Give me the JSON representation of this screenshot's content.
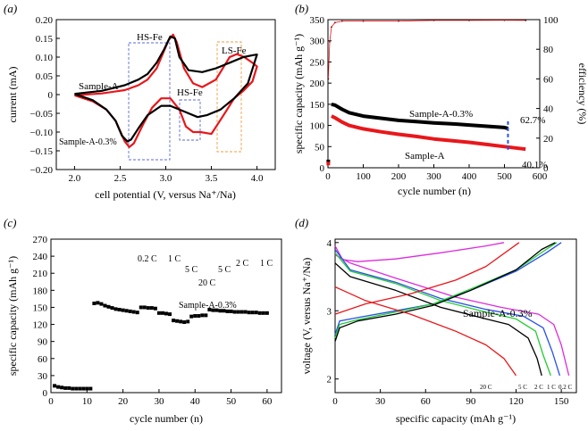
{
  "colors": {
    "black": "#000000",
    "red": "#e8171b",
    "blue": "#3a4fd6",
    "orange": "#f39b3c",
    "green": "#22cc33",
    "magenta": "#dd2bdd",
    "blue_curve": "#2850e8"
  },
  "chart_data": [
    {
      "panel": "(a)",
      "type": "line",
      "xlabel": "cell potential (V, versus Na⁺/Na)",
      "ylabel": "current (mA)",
      "xlim": [
        1.8,
        4.2
      ],
      "ylim": [
        -0.2,
        0.2
      ],
      "xticks": [
        "2.0",
        "2.5",
        "3.0",
        "3.5",
        "4.0"
      ],
      "yticks": [
        "0.20",
        "0.15",
        "0.10",
        "0.05",
        "0",
        "−0.05",
        "−0.10",
        "−0.15",
        "−0.20"
      ],
      "annotations": {
        "hs_fe_top": "HS-Fe",
        "hs_fe_mid": "HS-Fe",
        "ls_fe": "LS-Fe",
        "sample_a": "Sample-A",
        "sample_a03": "Sample-A-0.3%"
      },
      "series": [
        {
          "name": "Sample-A",
          "color": "red",
          "x": [
            2.0,
            2.3,
            2.55,
            2.7,
            2.8,
            2.9,
            2.97,
            3.03,
            3.08,
            3.12,
            3.2,
            3.3,
            3.4,
            3.55,
            3.7,
            3.78,
            3.86,
            3.95,
            4.0,
            3.95,
            3.85,
            3.75,
            3.62,
            3.5,
            3.38,
            3.3,
            3.22,
            3.15,
            3.05,
            2.95,
            2.85,
            2.75,
            2.65,
            2.6,
            2.55,
            2.45,
            2.35,
            2.2,
            2.0
          ],
          "y": [
            -0.002,
            0.003,
            0.012,
            0.025,
            0.04,
            0.07,
            0.11,
            0.145,
            0.16,
            0.14,
            0.07,
            0.03,
            0.02,
            0.04,
            0.1,
            0.108,
            0.1,
            0.085,
            0.075,
            0.035,
            0.01,
            -0.01,
            -0.06,
            -0.105,
            -0.1,
            -0.1,
            -0.085,
            -0.04,
            -0.01,
            -0.01,
            -0.035,
            -0.08,
            -0.13,
            -0.14,
            -0.125,
            -0.07,
            -0.04,
            -0.018,
            -0.002
          ]
        },
        {
          "name": "Sample-A-0.3%",
          "color": "black",
          "x": [
            2.0,
            2.3,
            2.55,
            2.7,
            2.8,
            2.9,
            2.98,
            3.05,
            3.1,
            3.15,
            3.25,
            3.4,
            3.55,
            3.7,
            3.85,
            3.95,
            4.0,
            3.9,
            3.75,
            3.6,
            3.45,
            3.35,
            3.2,
            3.05,
            2.95,
            2.8,
            2.7,
            2.62,
            2.58,
            2.52,
            2.45,
            2.35,
            2.2,
            2.0
          ],
          "y": [
            0.002,
            0.01,
            0.025,
            0.04,
            0.055,
            0.085,
            0.12,
            0.155,
            0.15,
            0.1,
            0.065,
            0.06,
            0.07,
            0.085,
            0.1,
            0.105,
            0.107,
            0.03,
            -0.01,
            -0.04,
            -0.055,
            -0.06,
            -0.045,
            -0.03,
            -0.03,
            -0.055,
            -0.09,
            -0.12,
            -0.125,
            -0.11,
            -0.07,
            -0.04,
            -0.015,
            0.002
          ]
        }
      ]
    },
    {
      "panel": "(b)",
      "type": "scatter",
      "xlabel": "cycle number (n)",
      "ylabel": "specific capacity (mAh g⁻¹)",
      "y2label": "efficiency (%)",
      "xlim": [
        0,
        600
      ],
      "ylim": [
        0,
        350
      ],
      "y2lim": [
        0,
        100
      ],
      "xticks": [
        "0",
        "100",
        "200",
        "300",
        "400",
        "500",
        "600"
      ],
      "yticks": [
        "0",
        "50",
        "100",
        "150",
        "200",
        "250",
        "300",
        "350"
      ],
      "y2ticks": [
        "0",
        "20",
        "40",
        "60",
        "80",
        "100"
      ],
      "annotations": {
        "label_a03": "Sample-A-0.3%",
        "label_a": "Sample-A",
        "retention_a03": "62.7%",
        "retention_a": "40.1%"
      },
      "series": [
        {
          "name": "Sample-A-0.3%",
          "color": "black",
          "x": [
            1,
            10,
            20,
            40,
            60,
            100,
            150,
            200,
            250,
            300,
            350,
            400,
            450,
            500,
            510
          ],
          "y": [
            15,
            150,
            148,
            138,
            130,
            122,
            117,
            112,
            109,
            106,
            104,
            101,
            98,
            95,
            93
          ]
        },
        {
          "name": "Sample-A",
          "color": "red",
          "x": [
            1,
            10,
            20,
            40,
            60,
            100,
            150,
            200,
            250,
            300,
            350,
            400,
            450,
            500,
            550,
            560
          ],
          "y": [
            10,
            122,
            118,
            108,
            100,
            92,
            85,
            79,
            74,
            68,
            64,
            60,
            55,
            50,
            45,
            44
          ]
        },
        {
          "name": "Efficiency",
          "axis": "right",
          "x": [
            1,
            5,
            10,
            20,
            40,
            100,
            200,
            300,
            400,
            500,
            560
          ],
          "y": [
            60,
            85,
            95,
            98,
            99,
            99,
            99,
            99.5,
            99.5,
            99.6,
            99.5
          ]
        }
      ]
    },
    {
      "panel": "(c)",
      "type": "scatter",
      "xlabel": "cycle number (n)",
      "ylabel": "specific capacity (mAh g⁻¹)",
      "xlim": [
        0,
        64
      ],
      "ylim": [
        0,
        270
      ],
      "xticks": [
        "0",
        "10",
        "20",
        "30",
        "40",
        "50",
        "60"
      ],
      "yticks": [
        "0",
        "30",
        "60",
        "90",
        "120",
        "150",
        "180",
        "210",
        "240",
        "270"
      ],
      "annotations": {
        "rate_02c_a": "0.2 C",
        "rate_1c_a": "1 C",
        "rate_5c_a": "5 C",
        "rate_20c": "20 C",
        "rate_5c_b": "5 C",
        "rate_2c": "2 C",
        "rate_1c_b": "1 C",
        "sample": "Sample-A-0.3%"
      },
      "series": [
        {
          "name": "Sample-A-0.3%",
          "color": "black",
          "x": [
            1,
            2,
            3,
            4,
            5,
            6,
            7,
            8,
            9,
            10,
            11,
            12,
            13,
            14,
            15,
            16,
            17,
            18,
            19,
            20,
            21,
            22,
            23,
            24,
            25,
            26,
            27,
            28,
            29,
            30,
            31,
            32,
            33,
            34,
            35,
            36,
            37,
            38,
            39,
            40,
            41,
            42,
            43,
            44,
            45,
            46,
            47,
            48,
            49,
            50,
            51,
            52,
            53,
            54,
            55,
            56,
            57,
            58,
            59,
            60
          ],
          "y": [
            12,
            10,
            9,
            8,
            8,
            7,
            7,
            7,
            7,
            7,
            7,
            157,
            158,
            156,
            153,
            151,
            149,
            147,
            146,
            145,
            144,
            143,
            142,
            141,
            150,
            150,
            149,
            149,
            148,
            140,
            140,
            139,
            138,
            127,
            126,
            125,
            124,
            125,
            134,
            135,
            135,
            136,
            136,
            146,
            145,
            145,
            144,
            144,
            143,
            143,
            142,
            142,
            142,
            142,
            141,
            141,
            141,
            140,
            140,
            140
          ]
        }
      ]
    },
    {
      "panel": "(d)",
      "type": "line",
      "xlabel": "specific capacity (mAh g⁻¹)",
      "ylabel": "voltage (V, versus Na⁺/Na)",
      "xlim": [
        0,
        160
      ],
      "ylim": [
        1.8,
        4.05
      ],
      "xticks": [
        "0",
        "30",
        "60",
        "90",
        "120",
        "150"
      ],
      "yticks": [
        "2",
        "3",
        "4"
      ],
      "annotations": {
        "sample": "Sample-A-0.3%",
        "rate_20c": "20 C",
        "rate_5c": "5 C",
        "rate_2c": "2 C",
        "rate_1c": "1 C",
        "rate_02c": "0.2 C"
      },
      "series": [
        {
          "name": "0.2 C",
          "color": "magenta",
          "charge_x": [
            0,
            5,
            15,
            40,
            70,
            100,
            112
          ],
          "charge_y": [
            3.95,
            3.75,
            3.72,
            3.76,
            3.85,
            3.95,
            4.0
          ],
          "discharge_x": [
            0,
            10,
            40,
            80,
            110,
            135,
            145,
            150,
            155
          ],
          "discharge_y": [
            3.82,
            3.7,
            3.48,
            3.2,
            3.05,
            2.95,
            2.8,
            2.5,
            2.05
          ]
        },
        {
          "name": "1 C",
          "color": "blue_curve",
          "charge_x": [
            0,
            3,
            15,
            40,
            65,
            90,
            120,
            140,
            150
          ],
          "charge_y": [
            2.65,
            2.85,
            2.9,
            3.0,
            3.1,
            3.3,
            3.58,
            3.85,
            4.0
          ],
          "discharge_x": [
            0,
            10,
            40,
            70,
            100,
            125,
            138,
            144,
            149
          ],
          "discharge_y": [
            3.9,
            3.6,
            3.42,
            3.18,
            3.02,
            2.92,
            2.75,
            2.4,
            2.05
          ]
        },
        {
          "name": "2 C",
          "color": "green",
          "charge_x": [
            0,
            3,
            15,
            40,
            65,
            90,
            120,
            140,
            147
          ],
          "charge_y": [
            2.6,
            2.8,
            2.87,
            2.98,
            3.1,
            3.32,
            3.6,
            3.9,
            4.0
          ],
          "discharge_x": [
            0,
            10,
            40,
            70,
            100,
            120,
            133,
            138,
            143
          ],
          "discharge_y": [
            3.85,
            3.58,
            3.4,
            3.15,
            2.98,
            2.88,
            2.7,
            2.35,
            2.05
          ]
        },
        {
          "name": "5 C",
          "color": "black",
          "charge_x": [
            0,
            3,
            15,
            40,
            65,
            90,
            120,
            137,
            146
          ],
          "charge_y": [
            2.55,
            2.75,
            2.85,
            2.95,
            3.08,
            3.3,
            3.6,
            3.9,
            4.0
          ],
          "discharge_x": [
            0,
            10,
            40,
            70,
            100,
            115,
            128,
            134,
            137
          ],
          "discharge_y": [
            3.7,
            3.5,
            3.3,
            3.05,
            2.88,
            2.8,
            2.6,
            2.3,
            2.05
          ]
        },
        {
          "name": "20 C",
          "color": "red",
          "charge_x": [
            0,
            20,
            50,
            80,
            100,
            122
          ],
          "charge_y": [
            2.95,
            3.1,
            3.25,
            3.45,
            3.65,
            4.0
          ],
          "discharge_x": [
            0,
            20,
            50,
            80,
            100,
            112,
            120
          ],
          "discharge_y": [
            3.35,
            3.15,
            2.95,
            2.7,
            2.5,
            2.3,
            2.05
          ]
        }
      ]
    }
  ]
}
